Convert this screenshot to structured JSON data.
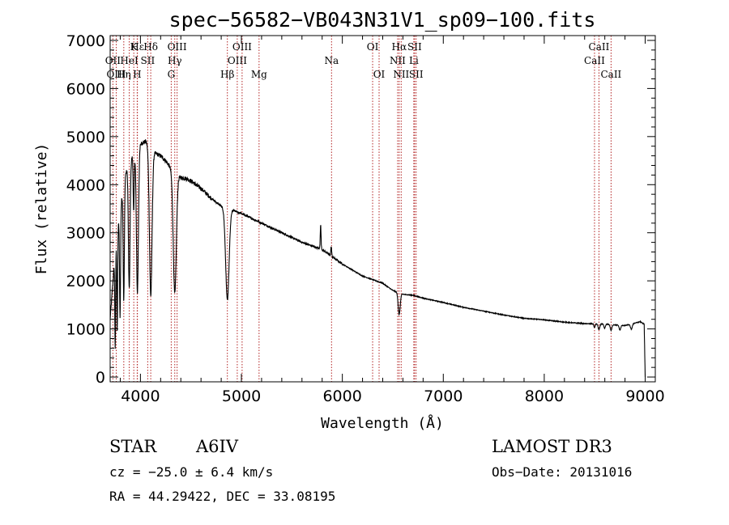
{
  "chart_data": {
    "type": "line",
    "title": "spec−56582−VB043N31V1_sp09−100.fits",
    "xlabel": "Wavelength (Å)",
    "ylabel": "Flux (relative)",
    "xlim": [
      3700,
      9100
    ],
    "ylim": [
      -100,
      7100
    ],
    "xticks": [
      4000,
      5000,
      6000,
      7000,
      8000,
      9000
    ],
    "yticks": [
      0,
      1000,
      2000,
      3000,
      4000,
      5000,
      6000,
      7000
    ],
    "grid": false,
    "line_color": "#000000",
    "marker_color": "#b22222",
    "spectral_lines": [
      {
        "name": "Hε",
        "wavelength": 3970,
        "row": 0
      },
      {
        "name": "K",
        "wavelength": 3934,
        "row": 0
      },
      {
        "name": "Hδ",
        "wavelength": 4102,
        "row": 0
      },
      {
        "name": "OIII",
        "wavelength": 4363,
        "row": 0
      },
      {
        "name": "OIII",
        "wavelength": 5007,
        "row": 0
      },
      {
        "name": "OI",
        "wavelength": 6300,
        "row": 0
      },
      {
        "name": "Hα",
        "wavelength": 6563,
        "row": 0
      },
      {
        "name": "SII",
        "wavelength": 6716,
        "row": 0
      },
      {
        "name": "CaII",
        "wavelength": 8542,
        "row": 0
      },
      {
        "name": "OII",
        "wavelength": 3727,
        "row": 1
      },
      {
        "name": "HeI",
        "wavelength": 3889,
        "row": 1
      },
      {
        "name": "SII",
        "wavelength": 4072,
        "row": 1
      },
      {
        "name": "Hγ",
        "wavelength": 4340,
        "row": 1
      },
      {
        "name": "OIII",
        "wavelength": 4959,
        "row": 1
      },
      {
        "name": "Na",
        "wavelength": 5893,
        "row": 1
      },
      {
        "name": "NII",
        "wavelength": 6548,
        "row": 1
      },
      {
        "name": "Li",
        "wavelength": 6708,
        "row": 1
      },
      {
        "name": "CaII",
        "wavelength": 8498,
        "row": 1
      },
      {
        "name": "OIII",
        "wavelength": 3760,
        "row": 2
      },
      {
        "name": "Hη",
        "wavelength": 3835,
        "row": 2
      },
      {
        "name": "H",
        "wavelength": 3968,
        "row": 2
      },
      {
        "name": "G",
        "wavelength": 4305,
        "row": 2
      },
      {
        "name": "Hβ",
        "wavelength": 4861,
        "row": 2
      },
      {
        "name": "Mg",
        "wavelength": 5175,
        "row": 2
      },
      {
        "name": "OI",
        "wavelength": 6364,
        "row": 2
      },
      {
        "name": "NII",
        "wavelength": 6583,
        "row": 2
      },
      {
        "name": "SII",
        "wavelength": 6731,
        "row": 2
      },
      {
        "name": "CaII",
        "wavelength": 8662,
        "row": 2
      }
    ],
    "continuum_anchors": [
      [
        3700,
        1200
      ],
      [
        3750,
        2600
      ],
      [
        3800,
        3500
      ],
      [
        3850,
        4200
      ],
      [
        3900,
        4500
      ],
      [
        3950,
        4700
      ],
      [
        4000,
        4850
      ],
      [
        4050,
        4900
      ],
      [
        4100,
        4800
      ],
      [
        4150,
        4650
      ],
      [
        4200,
        4600
      ],
      [
        4250,
        4500
      ],
      [
        4300,
        4350
      ],
      [
        4350,
        4200
      ],
      [
        4400,
        4150
      ],
      [
        4450,
        4130
      ],
      [
        4500,
        4080
      ],
      [
        4600,
        3920
      ],
      [
        4700,
        3720
      ],
      [
        4800,
        3550
      ],
      [
        4900,
        3480
      ],
      [
        5000,
        3400
      ],
      [
        5200,
        3200
      ],
      [
        5400,
        3000
      ],
      [
        5600,
        2800
      ],
      [
        5800,
        2650
      ],
      [
        6000,
        2350
      ],
      [
        6200,
        2100
      ],
      [
        6400,
        1950
      ],
      [
        6500,
        1800
      ],
      [
        6600,
        1720
      ],
      [
        6700,
        1700
      ],
      [
        6800,
        1640
      ],
      [
        7000,
        1550
      ],
      [
        7200,
        1450
      ],
      [
        7400,
        1370
      ],
      [
        7600,
        1290
      ],
      [
        7800,
        1220
      ],
      [
        8000,
        1190
      ],
      [
        8200,
        1140
      ],
      [
        8400,
        1110
      ],
      [
        8600,
        1100
      ],
      [
        8800,
        1070
      ],
      [
        8950,
        1150
      ],
      [
        8990,
        1100
      ],
      [
        9000,
        0
      ]
    ],
    "absorption_features": [
      {
        "wavelength": 3750,
        "depth": 2000,
        "width": 4
      },
      {
        "wavelength": 3770,
        "depth": 2000,
        "width": 4
      },
      {
        "wavelength": 3798,
        "depth": 2200,
        "width": 5
      },
      {
        "wavelength": 3835,
        "depth": 2400,
        "width": 6
      },
      {
        "wavelength": 3889,
        "depth": 2600,
        "width": 8
      },
      {
        "wavelength": 3933,
        "depth": 1200,
        "width": 5
      },
      {
        "wavelength": 3970,
        "depth": 3000,
        "width": 10
      },
      {
        "wavelength": 4102,
        "depth": 3100,
        "width": 13
      },
      {
        "wavelength": 4340,
        "depth": 2500,
        "width": 15
      },
      {
        "wavelength": 4861,
        "depth": 1900,
        "width": 17
      },
      {
        "wavelength": 6563,
        "depth": 450,
        "width": 10
      },
      {
        "wavelength": 8498,
        "depth": 80,
        "width": 6
      },
      {
        "wavelength": 8542,
        "depth": 120,
        "width": 8
      },
      {
        "wavelength": 8598,
        "depth": 90,
        "width": 7
      },
      {
        "wavelength": 8662,
        "depth": 120,
        "width": 8
      },
      {
        "wavelength": 8750,
        "depth": 100,
        "width": 8
      },
      {
        "wavelength": 8863,
        "depth": 110,
        "width": 9
      }
    ],
    "emission_features": [
      {
        "wavelength": 5785,
        "height": 500,
        "width": 4
      },
      {
        "wavelength": 5890,
        "height": 200,
        "width": 4
      }
    ],
    "noise_amplitude": 40
  },
  "info": {
    "object_class": "STAR",
    "subclass": "A6IV",
    "survey": "LAMOST DR3",
    "redshift": "cz = −25.0 ± 6.4 km/s",
    "obs_date": "Obs−Date: 20131016",
    "coordinates": "RA =  44.29422, DEC =  33.08195"
  }
}
